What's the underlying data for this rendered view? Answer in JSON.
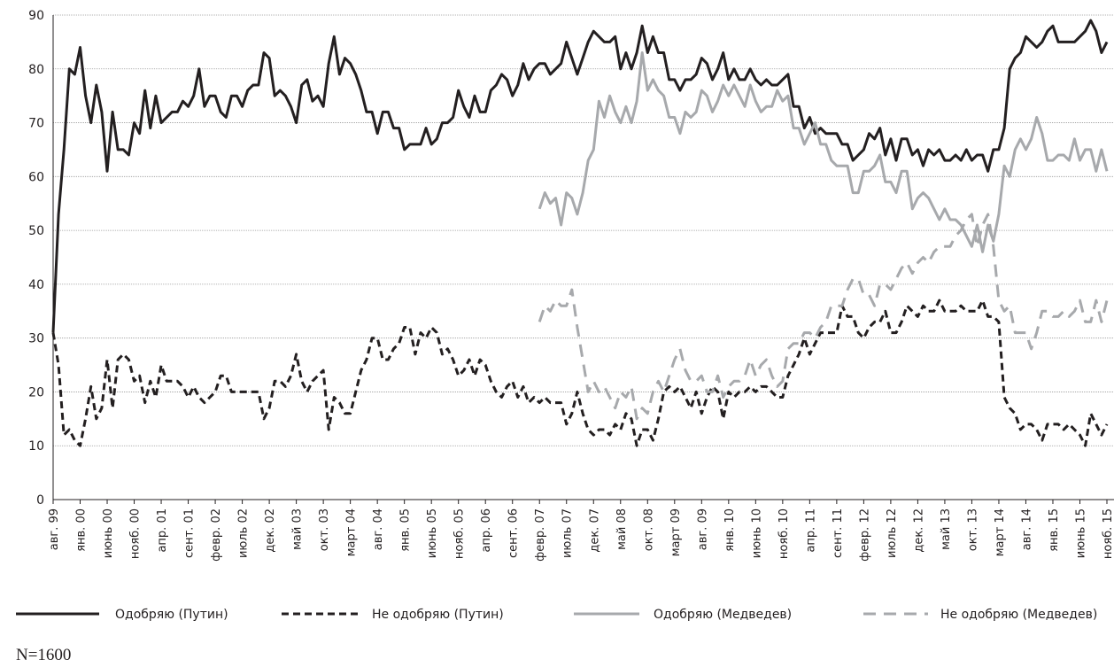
{
  "chart_data": {
    "type": "line",
    "categories": [
      "авг. 99",
      null,
      null,
      null,
      null,
      "янв. 00",
      null,
      null,
      null,
      null,
      "июнь 00",
      null,
      null,
      null,
      null,
      "нояб. 00",
      null,
      null,
      null,
      null,
      "апр. 01",
      null,
      null,
      null,
      null,
      "сент. 01",
      null,
      null,
      null,
      null,
      "февр. 02",
      null,
      null,
      null,
      null,
      "июль 02",
      null,
      null,
      null,
      null,
      "дек. 02",
      null,
      null,
      null,
      null,
      "май 03",
      null,
      null,
      null,
      null,
      "окт. 03",
      null,
      null,
      null,
      null,
      "март 04",
      null,
      null,
      null,
      null,
      "авг. 04",
      null,
      null,
      null,
      null,
      "янв. 05",
      null,
      null,
      null,
      null,
      "июнь 05",
      null,
      null,
      null,
      null,
      "нояб. 05",
      null,
      null,
      null,
      null,
      "апр. 06",
      null,
      null,
      null,
      null,
      "сент. 06",
      null,
      null,
      null,
      null,
      "февр. 07",
      null,
      null,
      null,
      null,
      "июль 07",
      null,
      null,
      null,
      null,
      "дек. 07",
      null,
      null,
      null,
      null,
      "май 08",
      null,
      null,
      null,
      null,
      "окт. 08",
      null,
      null,
      null,
      null,
      "март 09",
      null,
      null,
      null,
      null,
      "авг. 09",
      null,
      null,
      null,
      null,
      "янв. 10",
      null,
      null,
      null,
      null,
      "июнь 10",
      null,
      null,
      null,
      null,
      "нояб. 10",
      null,
      null,
      null,
      null,
      "апр. 11",
      null,
      null,
      null,
      null,
      "сент. 11",
      null,
      null,
      null,
      null,
      "февр. 12",
      null,
      null,
      null,
      null,
      "июль 12",
      null,
      null,
      null,
      null,
      "дек. 12",
      null,
      null,
      null,
      null,
      "май 13",
      null,
      null,
      null,
      null,
      "окт. 13",
      null,
      null,
      null,
      null,
      "март 14",
      null,
      null,
      null,
      null,
      "авг. 14",
      null,
      null,
      null,
      null,
      "янв. 15",
      null,
      null,
      null,
      null,
      "июнь 15",
      null,
      null,
      null,
      null,
      "нояб. 15"
    ],
    "series": [
      {
        "name": "Одобряю (Путин)",
        "color": "#231f20",
        "dash": false,
        "values": [
          31,
          53,
          65,
          80,
          79,
          84,
          75,
          70,
          77,
          72,
          61,
          72,
          65,
          65,
          64,
          70,
          68,
          76,
          69,
          75,
          70,
          71,
          72,
          72,
          74,
          73,
          75,
          80,
          73,
          75,
          75,
          72,
          71,
          75,
          75,
          73,
          76,
          77,
          77,
          83,
          82,
          75,
          76,
          75,
          73,
          70,
          77,
          78,
          74,
          75,
          73,
          81,
          86,
          79,
          82,
          81,
          79,
          76,
          72,
          72,
          68,
          72,
          72,
          69,
          69,
          65,
          66,
          66,
          66,
          69,
          66,
          67,
          70,
          70,
          71,
          76,
          73,
          71,
          75,
          72,
          72,
          76,
          77,
          79,
          78,
          75,
          77,
          81,
          78,
          80,
          81,
          81,
          79,
          80,
          81,
          85,
          82,
          79,
          82,
          85,
          87,
          86,
          85,
          85,
          86,
          80,
          83,
          80,
          83,
          88,
          83,
          86,
          83,
          83,
          78,
          78,
          76,
          78,
          78,
          79,
          82,
          81,
          78,
          80,
          83,
          78,
          80,
          78,
          78,
          80,
          78,
          77,
          78,
          77,
          77,
          78,
          79,
          73,
          73,
          69,
          71,
          68,
          69,
          68,
          68,
          68,
          66,
          66,
          63,
          64,
          65,
          68,
          67,
          69,
          64,
          67,
          63,
          67,
          67,
          64,
          65,
          62,
          65,
          64,
          65,
          63,
          63,
          64,
          63,
          65,
          63,
          64,
          64,
          61,
          65,
          65,
          69,
          80,
          82,
          83,
          86,
          85,
          84,
          85,
          87,
          88,
          85,
          85,
          85,
          85,
          86,
          87,
          89,
          87,
          83,
          85
        ]
      },
      {
        "name": "Не одобряю (Путин)",
        "color": "#231f20",
        "dash": true,
        "values": [
          31,
          25,
          12,
          13,
          11,
          10,
          15,
          21,
          15,
          17,
          26,
          17,
          26,
          27,
          26,
          22,
          23,
          18,
          22,
          19,
          25,
          22,
          22,
          22,
          21,
          19,
          21,
          19,
          18,
          19,
          20,
          23,
          23,
          20,
          20,
          20,
          20,
          20,
          20,
          15,
          17,
          22,
          22,
          21,
          23,
          27,
          22,
          20,
          22,
          23,
          24,
          13,
          19,
          18,
          16,
          16,
          20,
          24,
          26,
          30,
          30,
          26,
          26,
          28,
          29,
          32,
          32,
          27,
          31,
          30,
          32,
          31,
          27,
          28,
          26,
          23,
          24,
          26,
          23,
          26,
          25,
          22,
          20,
          19,
          21,
          22,
          19,
          21,
          18,
          19,
          18,
          19,
          18,
          18,
          18,
          14,
          16,
          20,
          16,
          13,
          12,
          13,
          13,
          12,
          14,
          13,
          16,
          15,
          10,
          13,
          13,
          11,
          15,
          20,
          21,
          20,
          21,
          19,
          17,
          20,
          16,
          19,
          21,
          20,
          15,
          20,
          19,
          20,
          20,
          21,
          20,
          21,
          21,
          20,
          19,
          19,
          23,
          25,
          27,
          30,
          27,
          29,
          31,
          31,
          31,
          31,
          36,
          34,
          34,
          31,
          30,
          32,
          33,
          33,
          35,
          31,
          31,
          33,
          36,
          35,
          34,
          36,
          35,
          35,
          37,
          35,
          35,
          35,
          36,
          35,
          35,
          35,
          37,
          34,
          34,
          33,
          19,
          17,
          16,
          13,
          14,
          14,
          13,
          11,
          14,
          14,
          14,
          13,
          14,
          13,
          12,
          10,
          16,
          14,
          12,
          14
        ]
      },
      {
        "name": "Одобряю (Медведев)",
        "color": "#a7a9ac",
        "dash": false,
        "values": [
          null,
          null,
          null,
          null,
          null,
          null,
          null,
          null,
          null,
          null,
          null,
          null,
          null,
          null,
          null,
          null,
          null,
          null,
          null,
          null,
          null,
          null,
          null,
          null,
          null,
          null,
          null,
          null,
          null,
          null,
          null,
          null,
          null,
          null,
          null,
          null,
          null,
          null,
          null,
          null,
          null,
          null,
          null,
          null,
          null,
          null,
          null,
          null,
          null,
          null,
          null,
          null,
          null,
          null,
          null,
          null,
          null,
          null,
          null,
          null,
          null,
          null,
          null,
          null,
          null,
          null,
          null,
          null,
          null,
          null,
          null,
          null,
          null,
          null,
          null,
          null,
          null,
          null,
          null,
          null,
          null,
          null,
          null,
          null,
          null,
          null,
          null,
          null,
          null,
          null,
          54,
          57,
          55,
          56,
          51,
          57,
          56,
          53,
          57,
          63,
          65,
          74,
          71,
          75,
          72,
          70,
          73,
          70,
          74,
          83,
          76,
          78,
          76,
          75,
          71,
          71,
          68,
          72,
          71,
          72,
          76,
          75,
          72,
          74,
          77,
          75,
          77,
          75,
          73,
          77,
          74,
          72,
          73,
          73,
          76,
          74,
          75,
          69,
          69,
          66,
          68,
          70,
          66,
          66,
          63,
          62,
          62,
          62,
          57,
          57,
          61,
          61,
          62,
          64,
          59,
          59,
          57,
          61,
          61,
          54,
          56,
          57,
          56,
          54,
          52,
          54,
          52,
          52,
          51,
          49,
          47,
          51,
          46,
          51,
          48,
          53,
          62,
          60,
          65,
          67,
          65,
          67,
          71,
          68,
          63,
          63,
          64,
          64,
          63,
          67,
          63,
          65,
          65,
          61,
          65,
          61
        ]
      },
      {
        "name": "Не одобряю (Медведев)",
        "color": "#a7a9ac",
        "dash": true,
        "values": [
          null,
          null,
          null,
          null,
          null,
          null,
          null,
          null,
          null,
          null,
          null,
          null,
          null,
          null,
          null,
          null,
          null,
          null,
          null,
          null,
          null,
          null,
          null,
          null,
          null,
          null,
          null,
          null,
          null,
          null,
          null,
          null,
          null,
          null,
          null,
          null,
          null,
          null,
          null,
          null,
          null,
          null,
          null,
          null,
          null,
          null,
          null,
          null,
          null,
          null,
          null,
          null,
          null,
          null,
          null,
          null,
          null,
          null,
          null,
          null,
          null,
          null,
          null,
          null,
          null,
          null,
          null,
          null,
          null,
          null,
          null,
          null,
          null,
          null,
          null,
          null,
          null,
          null,
          null,
          null,
          null,
          null,
          null,
          null,
          null,
          null,
          null,
          null,
          null,
          null,
          33,
          36,
          35,
          37,
          36,
          36,
          39,
          32,
          26,
          20,
          22,
          20,
          21,
          19,
          17,
          20,
          19,
          21,
          15,
          17,
          16,
          20,
          22,
          20,
          23,
          26,
          28,
          24,
          22,
          22,
          23,
          20,
          20,
          23,
          19,
          21,
          22,
          22,
          23,
          26,
          23,
          25,
          26,
          23,
          21,
          22,
          28,
          29,
          29,
          31,
          31,
          30,
          32,
          33,
          36,
          36,
          36,
          39,
          41,
          41,
          38,
          38,
          36,
          40,
          40,
          39,
          41,
          43,
          44,
          42,
          44,
          45,
          44,
          46,
          47,
          47,
          47,
          49,
          50,
          52,
          53,
          47,
          51,
          53,
          47,
          37,
          35,
          36,
          31,
          31,
          31,
          28,
          31,
          35,
          35,
          34,
          34,
          35,
          34,
          35,
          37,
          33,
          33,
          37,
          33,
          37
        ]
      }
    ],
    "ylim": [
      0,
      90
    ],
    "yticks": [
      0,
      10,
      20,
      30,
      40,
      50,
      60,
      70,
      80,
      90
    ],
    "grid": true,
    "legend": "bottom",
    "note": "N=1600"
  }
}
